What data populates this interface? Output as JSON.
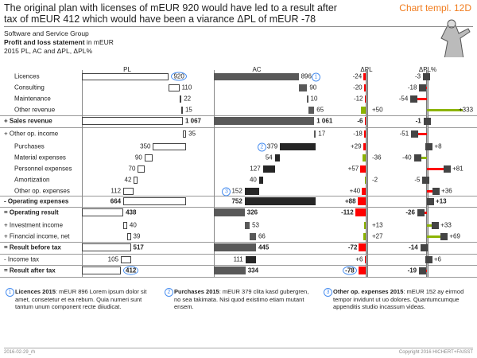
{
  "header": {
    "title": "The original plan with licenses of mEUR 920 would have led to a result after tax of mEUR 412 which would have been a viarance ΔPL of mEUR -78",
    "template_label": "Chart templ. 12D",
    "company": "Software and Service Group",
    "statement_bold": "Profit and loss statement",
    "statement_unit": " in mEUR",
    "scenario": "2015 PL, AC and ΔPL, ΔPL%"
  },
  "chart_data": {
    "type": "table",
    "columns": [
      "PL",
      "AC",
      "ΔPL",
      "ΔPL%"
    ],
    "rows": [
      {
        "label": "Licences",
        "kind": "add",
        "pl": 920,
        "ac": 896,
        "dpl": -24,
        "dplp": -3,
        "good": false
      },
      {
        "label": "Consulting",
        "kind": "add",
        "pl": 110,
        "ac": 90,
        "dpl": -20,
        "dplp": -18,
        "good": false
      },
      {
        "label": "Maintenance",
        "kind": "add",
        "pl": 22,
        "ac": 10,
        "dpl": -12,
        "dplp": -54,
        "good": false
      },
      {
        "label": "Other revenue",
        "kind": "add",
        "pl": 15,
        "ac": 65,
        "dpl": 50,
        "dplp": 333,
        "good": true
      },
      {
        "label": "+ Sales revenue",
        "kind": "total",
        "pl": 1067,
        "ac": 1061,
        "dpl": -6,
        "dplp": -1,
        "good": false
      },
      {
        "label": "+ Other op. income",
        "kind": "add",
        "pl": 35,
        "ac": 17,
        "dpl": -18,
        "dplp": -51,
        "good": false
      },
      {
        "label": "Purchases",
        "kind": "sub",
        "pl": 350,
        "ac": 379,
        "dpl": 29,
        "dplp": 8,
        "good": false
      },
      {
        "label": "Material expenses",
        "kind": "sub",
        "pl": 90,
        "ac": 54,
        "dpl": -36,
        "dplp": -40,
        "good": true
      },
      {
        "label": "Personnel expenses",
        "kind": "sub",
        "pl": 70,
        "ac": 127,
        "dpl": 57,
        "dplp": 81,
        "good": false
      },
      {
        "label": "Amortization",
        "kind": "sub",
        "pl": 42,
        "ac": 40,
        "dpl": -2,
        "dplp": -5,
        "good": true
      },
      {
        "label": "Other op. expenses",
        "kind": "sub",
        "pl": 112,
        "ac": 152,
        "dpl": 40,
        "dplp": 36,
        "good": false
      },
      {
        "label": "- Operating expenses",
        "kind": "span",
        "pl": 664,
        "ac": 752,
        "dpl": 88,
        "dplp": 13,
        "good": false
      },
      {
        "label": "= Operating result",
        "kind": "total",
        "pl": 438,
        "ac": 326,
        "dpl": -112,
        "dplp": -26,
        "good": false
      },
      {
        "label": "+ Investment  income",
        "kind": "add",
        "pl": 40,
        "ac": 53,
        "dpl": 13,
        "dplp": 33,
        "good": true
      },
      {
        "label": "+ Financial income, net",
        "kind": "add",
        "pl": 39,
        "ac": 66,
        "dpl": 27,
        "dplp": 69,
        "good": true
      },
      {
        "label": "= Result  before tax",
        "kind": "total",
        "pl": 517,
        "ac": 445,
        "dpl": -72,
        "dplp": -14,
        "good": false
      },
      {
        "label": "-  Income tax",
        "kind": "sub",
        "pl": 105,
        "ac": 111,
        "dpl": 6,
        "dplp": 6,
        "good": false
      },
      {
        "label": "= Result  after tax",
        "kind": "total",
        "pl": 412,
        "ac": 334,
        "dpl": -78,
        "dplp": -19,
        "good": false
      }
    ],
    "highlights": {
      "pl_circled": [
        "Licences",
        "= Result  after tax"
      ],
      "ac_markers": {
        "Licences": "1",
        "Purchases": "2",
        "Other op. expenses": "3"
      },
      "dpl_circled": [
        "= Result  after tax"
      ]
    },
    "colors": {
      "bad": "#ff0000",
      "good": "#8cb400",
      "ac_total": "#595959",
      "ac_expense": "#262626",
      "pl_fill": "#ffffff"
    }
  },
  "notes": [
    {
      "num": "1",
      "title": "Licences 2015",
      "text": ": mEUR 896 Lorem ipsum dolor sit amet, consetetur et ea rebum. Quia numeri sunt tantum unum component recte diiudicat."
    },
    {
      "num": "2",
      "title": "Purchases 2015",
      "text": ": mEUR 379 clita kasd gubergren,  no sea takimata. Nisi quod existimo etiam mutant ensem."
    },
    {
      "num": "3",
      "title": "Other op. expenses 2015",
      "text": ": mEUR 152 ay eirmod tempor invidunt ut uo dolores. Quantumcumque appenditis studio incassum videas."
    }
  ],
  "footer": {
    "left": "2016-02-29_rh",
    "right": "Copyright 2016 HICHERT+FAISST"
  }
}
